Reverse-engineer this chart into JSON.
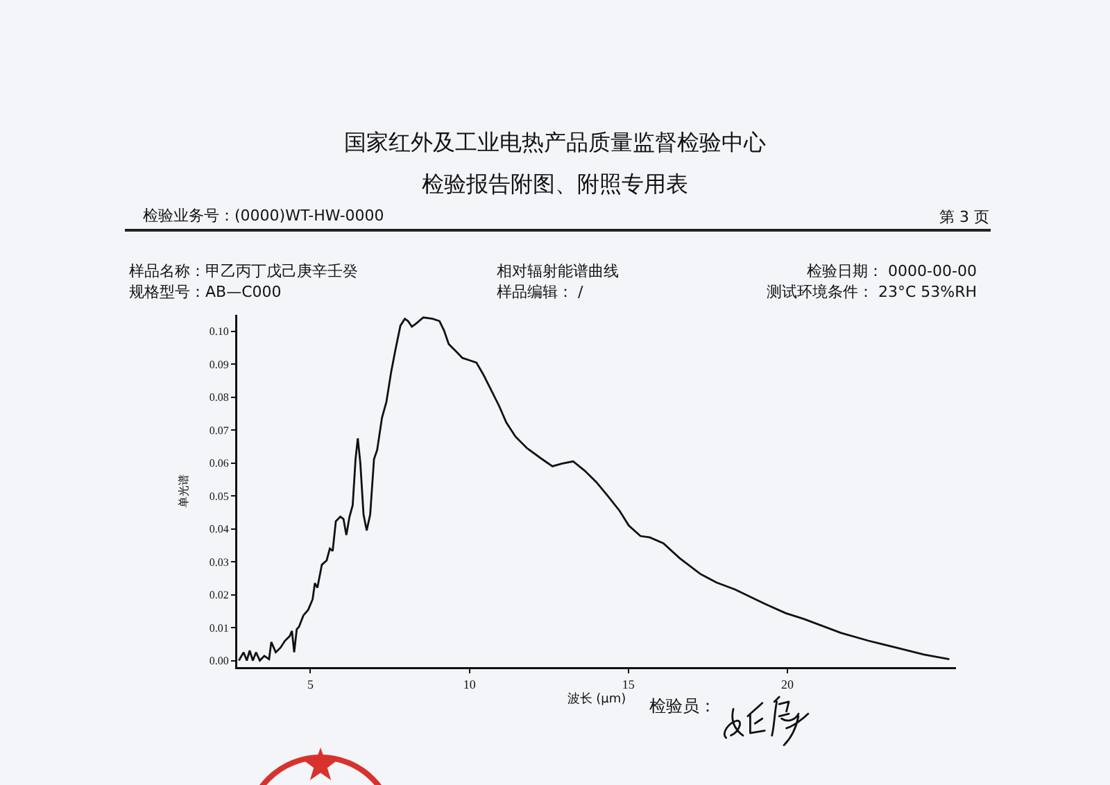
{
  "chart_data": {
    "type": "line",
    "title": "国家红外及工业电热产品质量监督检验中心",
    "subtitle": "检验报告附图、附照专用表",
    "xlabel": "波长 (μm)",
    "ylabel": "单光谱",
    "annotations": [
      "检验业务号：(0000)WT-HW-0000",
      "第 3 页",
      "样品名称：甲乙丙丁戊己庚辛壬癸",
      "规格型号：AB—C000",
      "相对辐射能谱曲线",
      "样品编辑： /",
      "检验日期： 0000-00-00",
      "测试环境条件： 23°C 53%RH",
      "检验员："
    ],
    "x": [
      2.75,
      2.9,
      3.0,
      3.09,
      3.19,
      3.29,
      3.41,
      3.55,
      3.7,
      3.77,
      3.91,
      4.06,
      4.2,
      4.35,
      4.42,
      4.49,
      4.57,
      4.64,
      4.78,
      4.93,
      5.07,
      5.14,
      5.22,
      5.36,
      5.51,
      5.61,
      5.7,
      5.8,
      5.94,
      6.04,
      6.13,
      6.23,
      6.33,
      6.42,
      6.49,
      6.57,
      6.67,
      6.77,
      6.88,
      7.0,
      7.1,
      7.25,
      7.39,
      7.54,
      7.68,
      7.83,
      7.97,
      8.07,
      8.19,
      8.33,
      8.55,
      8.84,
      9.06,
      9.2,
      9.35,
      9.57,
      9.78,
      10.0,
      10.22,
      10.43,
      10.65,
      10.94,
      11.16,
      11.45,
      11.81,
      12.25,
      12.61,
      12.9,
      13.26,
      13.62,
      13.99,
      14.35,
      14.72,
      15.01,
      15.38,
      15.67,
      16.1,
      16.61,
      17.26,
      17.77,
      18.35,
      19.29,
      19.94,
      20.52,
      21.68,
      22.55,
      23.42,
      24.29,
      25.09
    ],
    "values": [
      0.0,
      0.0025,
      0.0,
      0.003,
      0.0,
      0.0025,
      0.0,
      0.0014,
      0.0004,
      0.0056,
      0.0025,
      0.0039,
      0.006,
      0.0074,
      0.009,
      0.0025,
      0.0095,
      0.0102,
      0.0137,
      0.0154,
      0.0186,
      0.0235,
      0.0221,
      0.0291,
      0.0304,
      0.034,
      0.0333,
      0.0423,
      0.0437,
      0.043,
      0.0381,
      0.0437,
      0.0472,
      0.0612,
      0.0675,
      0.06,
      0.0444,
      0.0395,
      0.0444,
      0.0612,
      0.064,
      0.0737,
      0.0786,
      0.0877,
      0.0947,
      0.1017,
      0.1038,
      0.1031,
      0.1014,
      0.1024,
      0.1042,
      0.1038,
      0.1031,
      0.1003,
      0.0961,
      0.094,
      0.0919,
      0.0912,
      0.0905,
      0.087,
      0.0828,
      0.0772,
      0.0723,
      0.068,
      0.0645,
      0.0614,
      0.059,
      0.0598,
      0.0605,
      0.0577,
      0.0542,
      0.05,
      0.0455,
      0.041,
      0.0378,
      0.0374,
      0.0356,
      0.0311,
      0.0263,
      0.0237,
      0.0216,
      0.0172,
      0.0144,
      0.0126,
      0.0084,
      0.006,
      0.0039,
      0.0018,
      0.0004
    ],
    "color": "#111111",
    "xlim": [
      2.7,
      25.3
    ],
    "xticks": [
      5,
      10,
      15,
      20
    ],
    "ylim": [
      -0.002,
      0.105
    ],
    "yticks": [
      {
        "value": 0,
        "label": "0.00"
      },
      {
        "value": 0.01,
        "label": "0.01"
      },
      {
        "value": 0.02,
        "label": "0.02"
      },
      {
        "value": 0.03,
        "label": "0.03"
      },
      {
        "value": 0.04,
        "label": "0.04"
      },
      {
        "value": 0.05,
        "label": "0.05"
      },
      {
        "value": 0.06,
        "label": "0.06"
      },
      {
        "value": 0.07,
        "label": "0.07"
      },
      {
        "value": 0.08,
        "label": "0.08"
      },
      {
        "value": 0.09,
        "label": "0.09"
      },
      {
        "value": 0.1,
        "label": "0.10"
      }
    ]
  }
}
